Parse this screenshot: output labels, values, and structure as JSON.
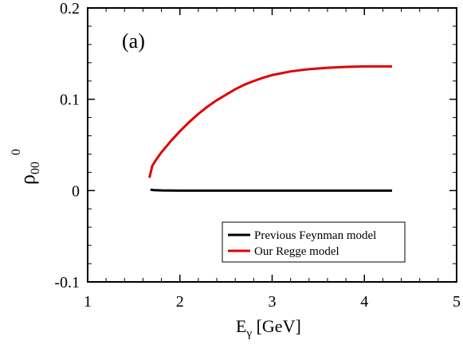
{
  "chart_data": {
    "type": "line",
    "panel_label": "(a)",
    "xlabel": {
      "main": "E",
      "sub": "γ",
      "unit": " [GeV]"
    },
    "ylabel": {
      "main": "ρ",
      "sup": "0",
      "sub": "00"
    },
    "xlim": [
      1,
      5
    ],
    "ylim": [
      -0.1,
      0.2
    ],
    "x_ticks": [
      1,
      2,
      3,
      4,
      5
    ],
    "x_tick_labels": [
      "1",
      "2",
      "3",
      "4",
      "5"
    ],
    "y_ticks": [
      -0.1,
      0,
      0.1,
      0.2
    ],
    "y_tick_labels": [
      "-0.1",
      "0",
      "0.1",
      "0.2"
    ],
    "grid": false,
    "legend_position": "bottom-right",
    "series": [
      {
        "name": "Previous Feynman model",
        "color": "#000000",
        "x": [
          1.68,
          1.72,
          1.8,
          2.0,
          2.5,
          3.0,
          3.5,
          4.0,
          4.3
        ],
        "y": [
          0.001,
          0.0005,
          0.0002,
          0.0,
          0.0,
          0.0,
          0.0,
          0.0,
          0.0
        ]
      },
      {
        "name": "Our Regge model",
        "color": "#e00000",
        "x": [
          1.67,
          1.7,
          1.75,
          1.8,
          1.9,
          2.0,
          2.1,
          2.2,
          2.3,
          2.4,
          2.5,
          2.6,
          2.7,
          2.8,
          2.9,
          3.0,
          3.2,
          3.4,
          3.6,
          3.8,
          4.0,
          4.2,
          4.3
        ],
        "y": [
          0.014,
          0.027,
          0.035,
          0.042,
          0.054,
          0.065,
          0.075,
          0.084,
          0.092,
          0.099,
          0.105,
          0.111,
          0.116,
          0.12,
          0.1235,
          0.1265,
          0.1305,
          0.133,
          0.1345,
          0.1355,
          0.136,
          0.136,
          0.136
        ]
      }
    ]
  }
}
